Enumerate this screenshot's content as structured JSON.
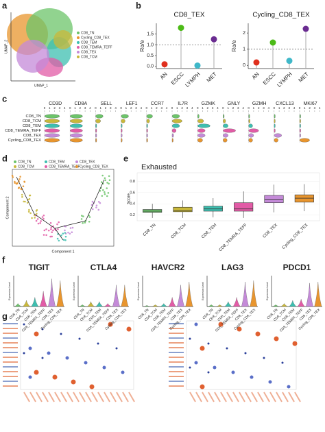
{
  "chart_data": [
    {
      "type": "scatter",
      "panel": "a",
      "xlabel": "UMAP_1",
      "ylabel": "UMAP_2",
      "series": [
        {
          "name": "CD8_TN",
          "color": "#6cc46a"
        },
        {
          "name": "Cycling_CD8_TEX",
          "color": "#e8952e"
        },
        {
          "name": "CD8_TEM",
          "color": "#3dbfb0"
        },
        {
          "name": "CD8_TEMRA_TEFF",
          "color": "#e25ba6"
        },
        {
          "name": "CD8_TEX",
          "color": "#c48ad8"
        },
        {
          "name": "CD8_TCM",
          "color": "#c9b83a"
        }
      ]
    },
    {
      "type": "lollipop",
      "panel": "b",
      "title": "CD8_TEX",
      "ylabel": "Ro/e",
      "categories": [
        "AN",
        "ESCC",
        "LYMPH",
        "MET"
      ],
      "values": [
        0.1,
        1.79,
        0.04,
        1.26
      ],
      "colors": [
        "#e0301e",
        "#4cbb17",
        "#3fb8c9",
        "#6a2c91"
      ],
      "ref_line": 1,
      "ylim": [
        -0.1,
        2.0
      ],
      "yticks": [
        {
          "value": 0,
          "label": "0.0"
        },
        0.5,
        {
          "value": 1,
          "label": "1.0"
        },
        1.5
      ]
    },
    {
      "type": "lollipop",
      "panel": "b",
      "title": "Cycling_CD8_TEX",
      "ylabel": "Ro/e",
      "categories": [
        "AN",
        "ESCC",
        "LYMPH",
        "MET"
      ],
      "values": [
        0.18,
        1.41,
        0.28,
        2.26
      ],
      "colors": [
        "#e0301e",
        "#4cbb17",
        "#3fb8c9",
        "#6a2c91"
      ],
      "ref_line": 1,
      "ylim": [
        -0.2,
        2.6
      ],
      "yticks": [
        0,
        1,
        2
      ]
    },
    {
      "type": "stacked-violin",
      "panel": "c",
      "genes": [
        "CD3D",
        "CD8A",
        "SELL",
        "LEF1",
        "CCR7",
        "IL7R",
        "GZMK",
        "GNLY",
        "GZMH",
        "CXCL13",
        "MKI67"
      ],
      "xticks": [
        0,
        1,
        2,
        3,
        4
      ],
      "xlim": [
        0,
        4
      ],
      "series": [
        {
          "name": "CD8_TN",
          "color": "#6cc46a",
          "values": [
            3,
            2.5,
            1.5,
            1.5,
            1.2,
            1.5,
            0.3,
            0.2,
            0.1,
            0.05,
            0
          ]
        },
        {
          "name": "CD8_TCM",
          "color": "#c9b83a",
          "values": [
            3,
            2.5,
            1,
            0.8,
            0.6,
            2,
            1.2,
            0.5,
            0.3,
            0.05,
            0
          ]
        },
        {
          "name": "CD8_TEM",
          "color": "#3dbfb0",
          "values": [
            3,
            2.5,
            0.2,
            0.2,
            0.1,
            1.5,
            2.5,
            1,
            0.8,
            0.1,
            0
          ]
        },
        {
          "name": "CD8_TEMRA_TEFF",
          "color": "#e25ba6",
          "values": [
            3,
            2.5,
            0.2,
            0.2,
            0.1,
            0.8,
            1.5,
            2.5,
            2,
            0.1,
            0
          ]
        },
        {
          "name": "CD8_TEX",
          "color": "#c48ad8",
          "values": [
            3,
            2.5,
            0.2,
            0.2,
            0.1,
            0.3,
            1.5,
            1,
            1,
            1.5,
            0.1
          ]
        },
        {
          "name": "Cycling_CD8_TEX",
          "color": "#e8952e",
          "values": [
            3,
            2.5,
            0.2,
            0.2,
            0.1,
            0.2,
            1,
            0.8,
            0.8,
            0.8,
            2
          ]
        }
      ]
    },
    {
      "type": "trajectory",
      "panel": "d",
      "xlabel": "Component 1",
      "ylabel": "Component 2",
      "series": [
        {
          "name": "CD8_TN",
          "color": "#6cc46a"
        },
        {
          "name": "CD8_TEM",
          "color": "#3dbfb0"
        },
        {
          "name": "CD8_TEX",
          "color": "#c48ad8"
        },
        {
          "name": "CD8_TCM",
          "color": "#c9b83a"
        },
        {
          "name": "CD8_TEMRA_TEFF",
          "color": "#e25ba6"
        },
        {
          "name": "Cycling_CD8_TEX",
          "color": "#e8952e"
        }
      ]
    },
    {
      "type": "box",
      "panel": "e",
      "title": "Exhausted",
      "ylabel": "Score",
      "categories": [
        "CD8_TN",
        "CD8_TCM",
        "CD8_TEM",
        "CD8_TEMRA_TEFF",
        "CD8_TEX",
        "Cycling_CD8_TEX"
      ],
      "colors": [
        "#6cc46a",
        "#c9b83a",
        "#3dbfb0",
        "#e25ba6",
        "#c48ad8",
        "#e8952e"
      ],
      "whislo": [
        0.15,
        0.15,
        0.16,
        0.15,
        0.25,
        0.27
      ],
      "q1": [
        0.25,
        0.26,
        0.27,
        0.27,
        0.42,
        0.43
      ],
      "median": [
        0.27,
        0.29,
        0.31,
        0.31,
        0.48,
        0.5
      ],
      "q3": [
        0.3,
        0.34,
        0.36,
        0.42,
        0.55,
        0.56
      ],
      "whishi": [
        0.4,
        0.46,
        0.5,
        0.62,
        0.74,
        0.75
      ],
      "ylim": [
        0.1,
        0.95
      ],
      "yticks": [
        0.2,
        0.4,
        0.6,
        0.8
      ]
    },
    {
      "type": "violin",
      "panel": "f",
      "ylabel": "Expression Level",
      "genes": [
        "TIGIT",
        "CTLA4",
        "HAVCR2",
        "LAG3",
        "PDCD1"
      ],
      "categories": [
        "CD8_TN",
        "CD8_TCM",
        "CD8_TEM",
        "CD8_TEMRA_TEFF",
        "CD8_TEX",
        "Cycling_CD8_TEX"
      ],
      "colors": [
        "#6cc46a",
        "#c9b83a",
        "#3dbfb0",
        "#e25ba6",
        "#c48ad8",
        "#e8952e"
      ],
      "ylim": [
        0,
        5
      ],
      "values": [
        [
          0.5,
          1,
          1.5,
          2.5,
          4.5,
          4.2
        ],
        [
          0.3,
          0.8,
          0.8,
          0.5,
          3.5,
          3.5
        ],
        [
          0.2,
          0.3,
          0.5,
          1.5,
          3.5,
          4
        ],
        [
          0.3,
          0.3,
          0.8,
          1.5,
          4,
          4.2
        ],
        [
          0.3,
          0.5,
          1,
          1.2,
          3.8,
          4
        ]
      ]
    },
    {
      "type": "dotplot",
      "panel": "g"
    }
  ]
}
